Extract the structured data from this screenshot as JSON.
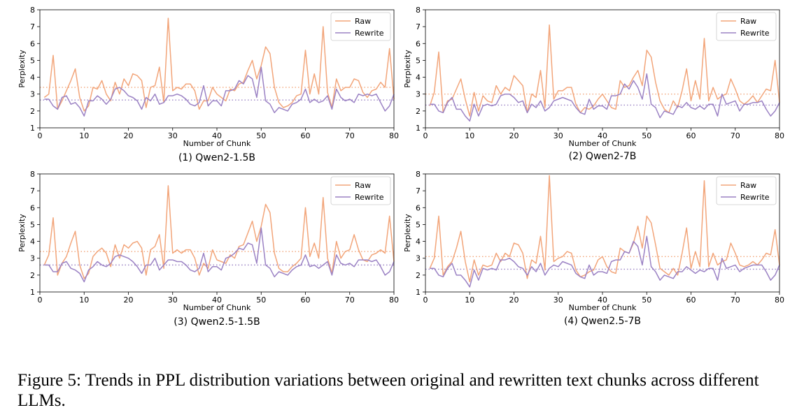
{
  "caption": "Figure 5: Trends in PPL distribution variations between original and rewritten text chunks across different LLMs.",
  "colors": {
    "raw": "#f2a57a",
    "rewrite": "#9b82c4"
  },
  "chart_data": [
    {
      "type": "line",
      "subcaption": "(1) Qwen2-1.5B",
      "xlabel": "Number of Chunk",
      "ylabel": "Perplexity",
      "xlim": [
        0,
        80
      ],
      "ylim": [
        1,
        8
      ],
      "xticks": [
        0,
        10,
        20,
        30,
        40,
        50,
        60,
        70,
        80
      ],
      "yticks": [
        1,
        2,
        3,
        4,
        5,
        6,
        7,
        8
      ],
      "legend_position": "top-right",
      "x": [
        1,
        2,
        3,
        4,
        5,
        6,
        7,
        8,
        9,
        10,
        11,
        12,
        13,
        14,
        15,
        16,
        17,
        18,
        19,
        20,
        21,
        22,
        23,
        24,
        25,
        26,
        27,
        28,
        29,
        30,
        31,
        32,
        33,
        34,
        35,
        36,
        37,
        38,
        39,
        40,
        41,
        42,
        43,
        44,
        45,
        46,
        47,
        48,
        49,
        50,
        51,
        52,
        53,
        54,
        55,
        56,
        57,
        58,
        59,
        60,
        61,
        62,
        63,
        64,
        65,
        66,
        67,
        68,
        69,
        70,
        71,
        72,
        73,
        74,
        75,
        76,
        77,
        78,
        79,
        80
      ],
      "series": [
        {
          "name": "Raw",
          "mean": 3.4,
          "values": [
            2.8,
            3.0,
            5.3,
            2.1,
            2.6,
            3.2,
            3.8,
            4.5,
            2.8,
            2.0,
            2.3,
            3.4,
            3.3,
            3.8,
            3.0,
            2.6,
            3.7,
            3.0,
            3.9,
            3.5,
            4.2,
            4.1,
            3.8,
            2.2,
            3.4,
            3.5,
            4.6,
            2.5,
            7.5,
            3.2,
            3.4,
            3.3,
            3.6,
            3.6,
            3.2,
            2.1,
            2.6,
            2.6,
            3.4,
            3.0,
            2.8,
            2.6,
            3.3,
            3.2,
            3.6,
            3.7,
            4.4,
            5.0,
            3.9,
            4.7,
            5.8,
            5.4,
            3.4,
            2.5,
            2.2,
            2.3,
            2.5,
            2.9,
            3.0,
            5.6,
            3.0,
            4.2,
            3.0,
            7.0,
            3.1,
            2.2,
            3.9,
            3.2,
            3.4,
            3.4,
            3.9,
            3.8,
            3.1,
            2.8,
            3.2,
            3.3,
            3.7,
            3.4,
            5.7,
            2.7
          ]
        },
        {
          "name": "Rewrite",
          "mean": 2.65,
          "values": [
            2.7,
            2.7,
            2.3,
            2.1,
            2.8,
            2.9,
            2.4,
            2.5,
            2.2,
            1.7,
            2.6,
            2.6,
            2.9,
            2.7,
            2.4,
            2.7,
            3.3,
            3.4,
            3.2,
            2.9,
            2.8,
            2.6,
            2.1,
            2.8,
            2.6,
            3.0,
            2.4,
            2.5,
            2.9,
            2.9,
            3.0,
            2.9,
            2.7,
            2.4,
            2.3,
            2.5,
            3.5,
            2.3,
            2.6,
            2.6,
            2.3,
            3.2,
            3.2,
            3.3,
            3.8,
            3.6,
            4.1,
            3.9,
            2.8,
            4.6,
            2.6,
            2.4,
            1.9,
            2.2,
            2.1,
            2.0,
            2.4,
            2.5,
            2.7,
            3.3,
            2.5,
            2.7,
            2.5,
            2.6,
            2.9,
            2.1,
            3.3,
            2.8,
            2.6,
            2.7,
            2.5,
            3.0,
            2.9,
            3.0,
            2.9,
            3.0,
            2.5,
            2.0,
            2.3,
            3.0
          ]
        }
      ]
    },
    {
      "type": "line",
      "subcaption": "(2) Qwen2-7B",
      "xlabel": "",
      "ylabel": "",
      "xlim": [
        0,
        80
      ],
      "ylim": [
        1,
        8
      ],
      "xticks": [
        0,
        10,
        20,
        30,
        40,
        50,
        60,
        70,
        80
      ],
      "yticks": [
        1,
        2,
        3,
        4,
        5,
        6,
        7,
        8
      ],
      "legend_position": "top-right",
      "x": [
        1,
        2,
        3,
        4,
        5,
        6,
        7,
        8,
        9,
        10,
        11,
        12,
        13,
        14,
        15,
        16,
        17,
        18,
        19,
        20,
        21,
        22,
        23,
        24,
        25,
        26,
        27,
        28,
        29,
        30,
        31,
        32,
        33,
        34,
        35,
        36,
        37,
        38,
        39,
        40,
        41,
        42,
        43,
        44,
        45,
        46,
        47,
        48,
        49,
        50,
        51,
        52,
        53,
        54,
        55,
        56,
        57,
        58,
        59,
        60,
        61,
        62,
        63,
        64,
        65,
        66,
        67,
        68,
        69,
        70,
        71,
        72,
        73,
        74,
        75,
        76,
        77,
        78,
        79,
        80
      ],
      "series": [
        {
          "name": "Raw",
          "mean": 3.0,
          "values": [
            2.3,
            3.1,
            5.5,
            1.9,
            2.6,
            2.7,
            3.3,
            3.9,
            2.7,
            1.7,
            3.1,
            2.0,
            2.9,
            2.6,
            2.5,
            3.5,
            3.0,
            3.4,
            3.2,
            4.1,
            3.8,
            3.5,
            1.9,
            3.0,
            2.8,
            4.4,
            2.2,
            7.1,
            2.7,
            3.2,
            3.2,
            3.4,
            3.4,
            2.4,
            1.9,
            2.2,
            2.1,
            2.3,
            2.7,
            3.0,
            2.6,
            2.2,
            2.1,
            3.8,
            3.4,
            3.5,
            4.0,
            4.4,
            3.5,
            5.6,
            5.2,
            3.7,
            2.6,
            2.1,
            1.9,
            2.6,
            2.2,
            3.2,
            4.5,
            2.6,
            3.8,
            2.7,
            6.3,
            2.6,
            3.4,
            2.7,
            2.9,
            3.0,
            3.9,
            3.3,
            2.6,
            2.4,
            2.6,
            2.9,
            2.5,
            2.9,
            3.3,
            3.2,
            5.0,
            2.5
          ]
        },
        {
          "name": "Rewrite",
          "mean": 2.35,
          "values": [
            2.4,
            2.4,
            2.0,
            1.9,
            2.5,
            2.8,
            2.1,
            2.1,
            1.7,
            1.4,
            2.4,
            1.7,
            2.3,
            2.4,
            2.3,
            2.4,
            2.9,
            3.0,
            3.0,
            2.8,
            2.5,
            2.6,
            1.9,
            2.4,
            2.2,
            2.6,
            2.0,
            2.2,
            2.6,
            2.7,
            2.8,
            2.7,
            2.6,
            2.2,
            1.9,
            1.8,
            2.7,
            2.1,
            2.3,
            2.3,
            2.1,
            2.9,
            2.9,
            3.0,
            3.6,
            3.3,
            3.8,
            3.4,
            2.7,
            4.2,
            2.4,
            2.2,
            1.6,
            2.0,
            1.9,
            1.8,
            2.3,
            2.2,
            2.5,
            2.2,
            2.1,
            2.3,
            2.1,
            2.4,
            2.4,
            1.7,
            3.0,
            2.4,
            2.5,
            2.6,
            2.0,
            2.4,
            2.4,
            2.5,
            2.5,
            2.6,
            2.1,
            1.7,
            2.0,
            2.5
          ]
        }
      ]
    },
    {
      "type": "line",
      "subcaption": "(3) Qwen2.5-1.5B",
      "xlabel": "Number of Chunk",
      "ylabel": "Perplexity",
      "xlim": [
        0,
        80
      ],
      "ylim": [
        1,
        8
      ],
      "xticks": [
        0,
        10,
        20,
        30,
        40,
        50,
        60,
        70,
        80
      ],
      "yticks": [
        1,
        2,
        3,
        4,
        5,
        6,
        7,
        8
      ],
      "legend_position": "top-right",
      "x": [
        1,
        2,
        3,
        4,
        5,
        6,
        7,
        8,
        9,
        10,
        11,
        12,
        13,
        14,
        15,
        16,
        17,
        18,
        19,
        20,
        21,
        22,
        23,
        24,
        25,
        26,
        27,
        28,
        29,
        30,
        31,
        32,
        33,
        34,
        35,
        36,
        37,
        38,
        39,
        40,
        41,
        42,
        43,
        44,
        45,
        46,
        47,
        48,
        49,
        50,
        51,
        52,
        53,
        54,
        55,
        56,
        57,
        58,
        59,
        60,
        61,
        62,
        63,
        64,
        65,
        66,
        67,
        68,
        69,
        70,
        71,
        72,
        73,
        74,
        75,
        76,
        77,
        78,
        79,
        80
      ],
      "series": [
        {
          "name": "Raw",
          "mean": 3.4,
          "values": [
            2.6,
            3.2,
            5.4,
            2.0,
            2.7,
            3.1,
            3.9,
            4.6,
            2.6,
            1.8,
            2.1,
            3.1,
            3.4,
            3.6,
            3.3,
            2.5,
            3.8,
            3.0,
            3.8,
            3.6,
            3.9,
            4.0,
            3.6,
            2.0,
            3.5,
            3.7,
            4.4,
            2.4,
            7.3,
            3.3,
            3.5,
            3.3,
            3.5,
            3.5,
            3.0,
            2.0,
            2.7,
            2.4,
            3.5,
            2.9,
            2.8,
            2.7,
            3.2,
            3.0,
            3.7,
            3.8,
            4.5,
            5.2,
            4.0,
            4.9,
            6.2,
            5.7,
            3.3,
            2.4,
            2.2,
            2.2,
            2.5,
            2.7,
            3.0,
            6.0,
            3.1,
            3.9,
            3.0,
            6.6,
            3.0,
            2.1,
            4.0,
            3.0,
            3.4,
            3.5,
            4.4,
            3.5,
            2.9,
            2.8,
            3.2,
            3.3,
            3.5,
            3.3,
            5.5,
            2.8
          ]
        },
        {
          "name": "Rewrite",
          "mean": 2.6,
          "values": [
            2.6,
            2.6,
            2.2,
            2.2,
            2.7,
            2.8,
            2.4,
            2.3,
            2.1,
            1.6,
            2.3,
            2.5,
            2.8,
            2.6,
            2.5,
            2.7,
            3.1,
            3.2,
            3.1,
            3.0,
            2.8,
            2.5,
            2.1,
            2.6,
            2.6,
            3.0,
            2.3,
            2.6,
            2.9,
            2.9,
            2.8,
            2.8,
            2.6,
            2.3,
            2.2,
            2.4,
            3.3,
            2.2,
            2.5,
            2.5,
            2.3,
            3.0,
            3.1,
            3.3,
            3.6,
            3.5,
            3.9,
            3.8,
            2.7,
            4.8,
            2.6,
            2.4,
            1.9,
            2.2,
            2.1,
            2.0,
            2.3,
            2.5,
            2.6,
            3.2,
            2.5,
            2.6,
            2.4,
            2.6,
            2.8,
            2.0,
            3.2,
            2.7,
            2.6,
            2.7,
            2.5,
            2.9,
            2.9,
            2.9,
            2.8,
            2.9,
            2.5,
            2.0,
            2.2,
            2.8
          ]
        }
      ]
    },
    {
      "type": "line",
      "subcaption": "(4) Qwen2.5-7B",
      "xlabel": "Number of Chunk",
      "ylabel": "",
      "xlim": [
        0,
        80
      ],
      "ylim": [
        1,
        8
      ],
      "xticks": [
        0,
        10,
        20,
        30,
        40,
        50,
        60,
        70,
        80
      ],
      "yticks": [
        1,
        2,
        3,
        4,
        5,
        6,
        7,
        8
      ],
      "legend_position": "top-right",
      "x": [
        1,
        2,
        3,
        4,
        5,
        6,
        7,
        8,
        9,
        10,
        11,
        12,
        13,
        14,
        15,
        16,
        17,
        18,
        19,
        20,
        21,
        22,
        23,
        24,
        25,
        26,
        27,
        28,
        29,
        30,
        31,
        32,
        33,
        34,
        35,
        36,
        37,
        38,
        39,
        40,
        41,
        42,
        43,
        44,
        45,
        46,
        47,
        48,
        49,
        50,
        51,
        52,
        53,
        54,
        55,
        56,
        57,
        58,
        59,
        60,
        61,
        62,
        63,
        64,
        65,
        66,
        67,
        68,
        69,
        70,
        71,
        72,
        73,
        74,
        75,
        76,
        77,
        78,
        79,
        80
      ],
      "series": [
        {
          "name": "Raw",
          "mean": 3.1,
          "values": [
            2.4,
            3.0,
            5.5,
            2.0,
            2.5,
            2.8,
            3.6,
            4.6,
            2.8,
            1.6,
            2.9,
            2.0,
            2.6,
            2.5,
            2.6,
            3.3,
            2.8,
            3.3,
            3.1,
            3.9,
            3.8,
            3.3,
            1.8,
            2.9,
            2.7,
            4.3,
            2.3,
            7.9,
            2.8,
            3.0,
            3.1,
            3.4,
            3.3,
            2.3,
            1.9,
            2.0,
            2.2,
            2.3,
            2.9,
            3.1,
            2.5,
            2.2,
            2.1,
            3.6,
            3.4,
            3.3,
            3.9,
            4.9,
            3.6,
            5.5,
            5.1,
            3.8,
            2.4,
            2.2,
            2.0,
            2.4,
            2.0,
            3.3,
            4.8,
            2.4,
            3.4,
            2.5,
            7.6,
            2.5,
            3.3,
            2.6,
            2.8,
            2.9,
            3.9,
            3.3,
            2.6,
            2.5,
            2.6,
            2.8,
            2.6,
            2.9,
            3.3,
            3.2,
            4.7,
            2.6
          ]
        },
        {
          "name": "Rewrite",
          "mean": 2.35,
          "values": [
            2.4,
            2.4,
            2.0,
            1.9,
            2.4,
            2.7,
            2.0,
            2.0,
            1.7,
            1.3,
            2.3,
            1.7,
            2.4,
            2.3,
            2.4,
            2.3,
            2.9,
            2.9,
            3.0,
            2.8,
            2.5,
            2.4,
            2.0,
            2.5,
            2.2,
            2.7,
            2.0,
            2.4,
            2.6,
            2.5,
            2.8,
            2.7,
            2.6,
            2.1,
            1.9,
            1.8,
            2.6,
            2.0,
            2.2,
            2.2,
            2.1,
            2.8,
            2.9,
            2.9,
            3.4,
            3.3,
            4.0,
            3.7,
            2.6,
            4.3,
            2.5,
            2.2,
            1.7,
            2.0,
            1.9,
            1.8,
            2.2,
            2.2,
            2.5,
            2.3,
            2.1,
            2.3,
            2.2,
            2.4,
            2.4,
            1.7,
            3.0,
            2.4,
            2.5,
            2.6,
            2.2,
            2.4,
            2.5,
            2.6,
            2.6,
            2.6,
            2.2,
            1.7,
            2.0,
            2.6
          ]
        }
      ]
    }
  ]
}
